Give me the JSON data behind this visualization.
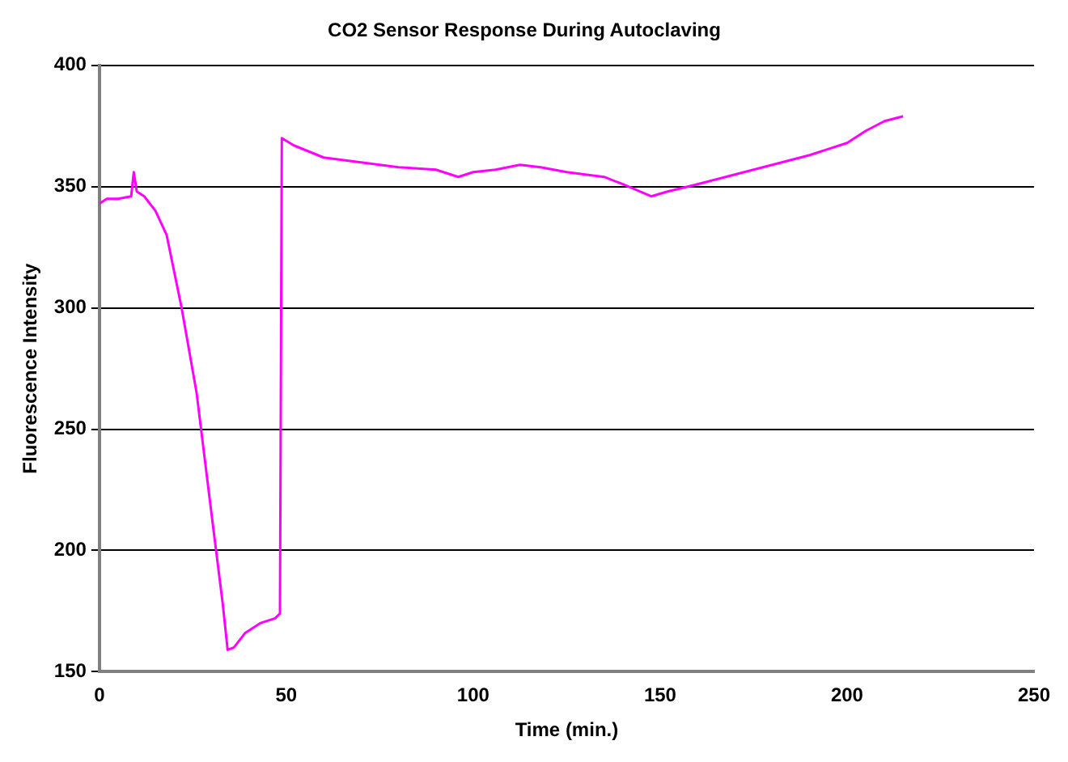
{
  "chart_data": {
    "type": "line",
    "title": "CO2 Sensor Response During Autoclaving",
    "xlabel": "Time (min.)",
    "ylabel": "Fluorescence Intensity",
    "x": [
      0,
      2,
      5,
      8.5,
      9.2,
      10,
      12,
      15,
      18,
      22,
      26,
      30,
      33,
      34.3,
      36,
      39,
      43,
      47,
      48.3,
      48.8,
      52,
      60,
      70,
      80,
      90,
      96,
      100,
      106,
      112.5,
      118,
      125,
      135,
      140,
      147.6,
      152,
      160,
      170,
      180,
      190,
      200,
      205,
      210,
      215
    ],
    "series": [
      {
        "color": "#ff00ff",
        "values": [
          343,
          345,
          345,
          346,
          356,
          348,
          346,
          340,
          330,
          300,
          265,
          215,
          178,
          159,
          160,
          166,
          170,
          172,
          174,
          370,
          367,
          362,
          360,
          358,
          357,
          354,
          356,
          357,
          359,
          358,
          356,
          354,
          351,
          346,
          348,
          351,
          355,
          359,
          363,
          368,
          373,
          377,
          379
        ]
      }
    ],
    "xlim": [
      0,
      250
    ],
    "xticks": [
      0,
      50,
      100,
      150,
      200,
      250
    ],
    "ylim": [
      150,
      400
    ],
    "yticks": [
      150,
      200,
      250,
      300,
      350,
      400
    ],
    "grid": "y",
    "legend": false,
    "marker": "none",
    "line_style": "solid"
  }
}
